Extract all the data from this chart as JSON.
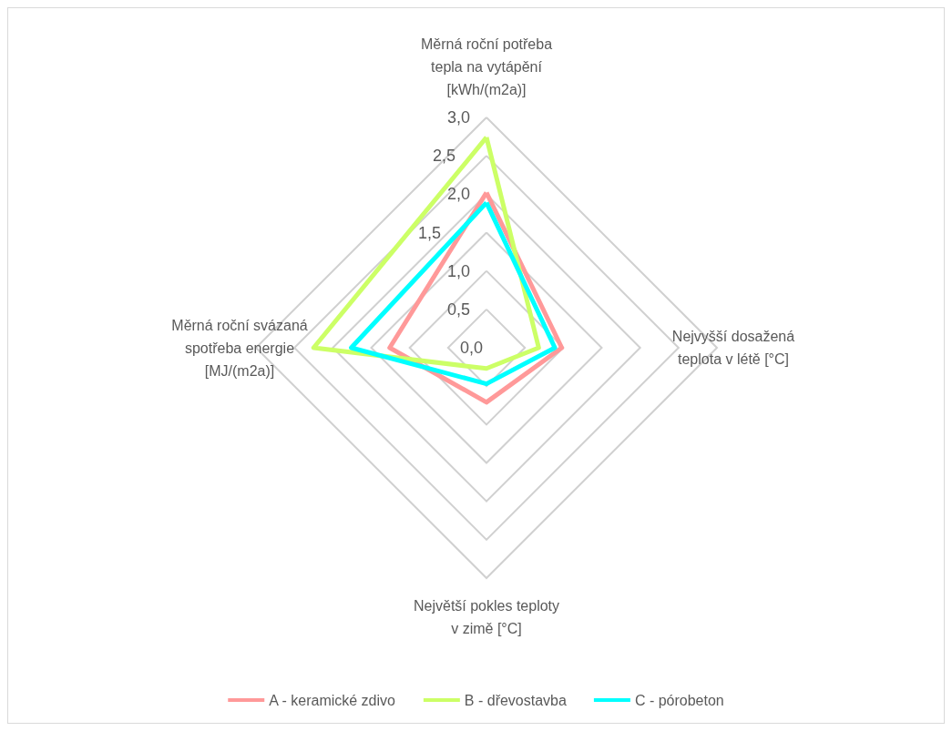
{
  "chart_data": {
    "type": "radar",
    "categories": [
      "Měrná roční potřeba tepla na vytápění [kWh/(m2a)]",
      "Nejvyšší dosažená teplota v létě [°C]",
      "Největší pokles teploty v zimě [°C]",
      "Měrná roční svázaná spotřeba energie [MJ/(m2a)]"
    ],
    "series": [
      {
        "name": "A - keramické zdivo",
        "color": "#ff9999",
        "values": [
          2.02,
          0.98,
          0.71,
          1.26
        ]
      },
      {
        "name": "B - dřevostavba",
        "color": "#ccff66",
        "values": [
          2.74,
          0.68,
          0.27,
          2.25
        ]
      },
      {
        "name": "C - pórobeton",
        "color": "#00ffff",
        "values": [
          1.89,
          0.89,
          0.47,
          1.76
        ]
      }
    ],
    "ylim": [
      0,
      3
    ],
    "yticks": [
      {
        "value": 0,
        "label": "0,0"
      },
      {
        "value": 0.5,
        "label": "0,5"
      },
      {
        "value": 1,
        "label": "1,0"
      },
      {
        "value": 1.5,
        "label": "1,5"
      },
      {
        "value": 2,
        "label": "2,0"
      },
      {
        "value": 2.5,
        "label": "2,5"
      },
      {
        "value": 3,
        "label": "3,0"
      }
    ],
    "legend": "bottom",
    "marker": "none",
    "line_style": "solid"
  }
}
